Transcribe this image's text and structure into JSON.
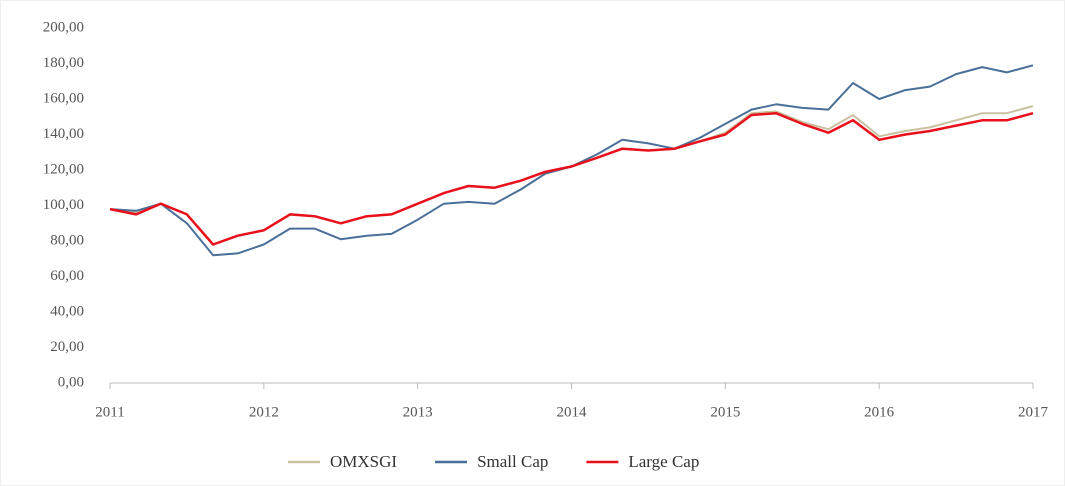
{
  "chart_data": {
    "type": "line",
    "x": [
      2011,
      2011.17,
      2011.33,
      2011.5,
      2011.67,
      2011.83,
      2012,
      2012.17,
      2012.33,
      2012.5,
      2012.67,
      2012.83,
      2013,
      2013.17,
      2013.33,
      2013.5,
      2013.67,
      2013.83,
      2014,
      2014.17,
      2014.33,
      2014.5,
      2014.67,
      2014.83,
      2015,
      2015.17,
      2015.33,
      2015.5,
      2015.67,
      2015.83,
      2016,
      2016.17,
      2016.33,
      2016.5,
      2016.67,
      2016.83,
      2017
    ],
    "series": [
      {
        "name": "OMXSGI",
        "color": "#c9c1a0",
        "values": [
          98,
          96,
          101,
          95,
          78,
          83,
          86,
          95,
          94,
          90,
          94,
          95,
          101,
          107,
          111,
          110,
          114,
          119,
          122,
          127,
          132,
          131,
          132,
          136,
          141,
          152,
          153,
          147,
          143,
          151,
          139,
          142,
          144,
          148,
          152,
          152,
          156
        ]
      },
      {
        "name": "Small Cap",
        "color": "#4a6f98",
        "values": [
          98,
          97,
          101,
          90,
          72,
          73,
          78,
          87,
          87,
          81,
          83,
          84,
          92,
          101,
          102,
          101,
          109,
          118,
          122,
          129,
          137,
          135,
          132,
          138,
          146,
          154,
          157,
          155,
          154,
          169,
          160,
          165,
          167,
          174,
          178,
          175,
          179
        ]
      },
      {
        "name": "Large Cap",
        "color": "#e8101a",
        "values": [
          98,
          95,
          101,
          95,
          78,
          83,
          86,
          95,
          94,
          90,
          94,
          95,
          101,
          107,
          111,
          110,
          114,
          119,
          122,
          127,
          132,
          131,
          132,
          136,
          140,
          151,
          152,
          146,
          141,
          148,
          137,
          140,
          142,
          145,
          148,
          148,
          152
        ]
      }
    ],
    "xlim": [
      2011,
      2017
    ],
    "xticks": [
      2011,
      2012,
      2013,
      2014,
      2015,
      2016,
      2017
    ],
    "ylim": [
      0,
      200
    ],
    "yticks": [
      {
        "value": 0,
        "label": "0,00"
      },
      {
        "value": 20,
        "label": "20,00"
      },
      {
        "value": 40,
        "label": "40,00"
      },
      {
        "value": 60,
        "label": "60,00"
      },
      {
        "value": 80,
        "label": "80,00"
      },
      {
        "value": 100,
        "label": "100,00"
      },
      {
        "value": 120,
        "label": "120,00"
      },
      {
        "value": 140,
        "label": "140,00"
      },
      {
        "value": 160,
        "label": "160,00"
      },
      {
        "value": 180,
        "label": "180,00"
      },
      {
        "value": 200,
        "label": "200,00"
      }
    ],
    "grid": false,
    "legend": "bottom"
  }
}
